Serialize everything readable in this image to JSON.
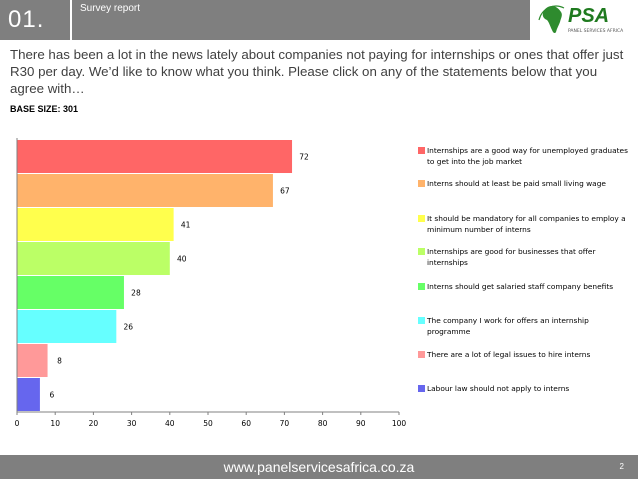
{
  "header": {
    "slide_number": "01.",
    "section_label": "Survey report",
    "logo_text": "PSA",
    "logo_subtitle": "PANEL SERVICES AFRICA"
  },
  "question_text": "There has been a lot in the news lately about companies not paying for internships or ones that offer just R30 per day. We’d like to know what you think. Please click on any of the statements below that you agree with…",
  "base_size": "BASE SIZE: 301",
  "footer": {
    "website": "www.panelservicesafrica.co.za",
    "page_number": "2"
  },
  "chart_data": {
    "type": "bar",
    "orientation": "horizontal",
    "categories": [
      "Internships are a good way for unemployed graduates to get into the job market",
      "Interns should at least be paid small living wage",
      "It should be mandatory for all companies to employ a minimum number of interns",
      "Internships are good for businesses that offer internships",
      "Interns should get salaried staff company benefits",
      "The company I work for offers an internship programme",
      "There are a lot of legal issues to hire interns",
      "Labour law should not apply to interns"
    ],
    "values": [
      72,
      67,
      41,
      40,
      28,
      26,
      8,
      6
    ],
    "colors": [
      "#ff6666",
      "#ffb36b",
      "#ffff4d",
      "#bbff66",
      "#66ff66",
      "#66ffff",
      "#ff9999",
      "#6666ee"
    ],
    "xlim": [
      0,
      100
    ],
    "xticks": [
      0,
      10,
      20,
      30,
      40,
      50,
      60,
      70,
      80,
      90,
      100
    ],
    "grid": false,
    "legend_position": "right",
    "data_labels": true
  }
}
